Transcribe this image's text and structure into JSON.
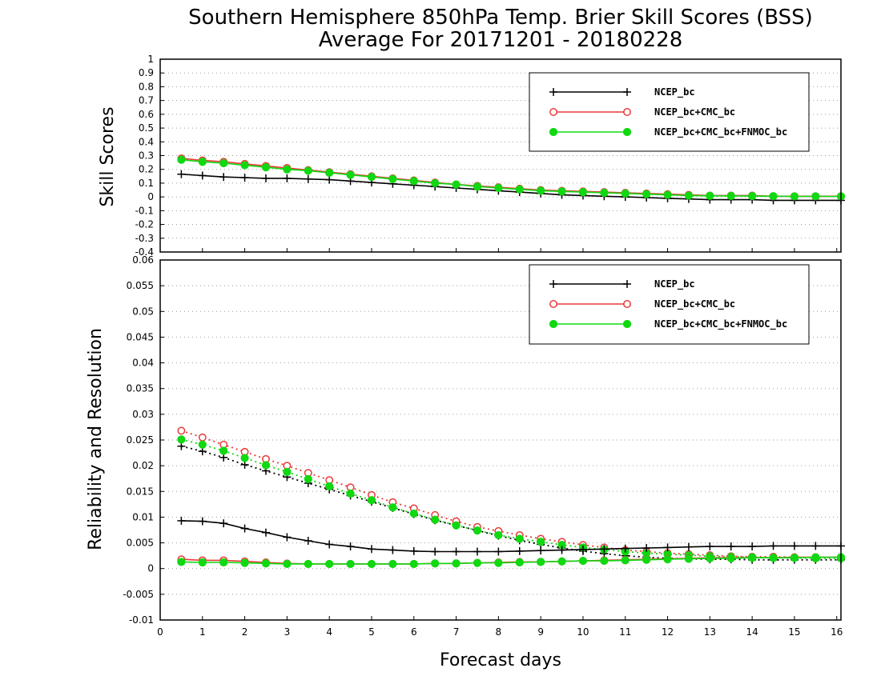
{
  "title": "Southern Hemisphere 850hPa Temp. Brier Skill Scores (BSS)",
  "subtitle": "Average For 20171201 - 20180228",
  "xlabel": "Forecast days",
  "colors": {
    "NCEP_bc": "#000000",
    "NCEP_bc+CMC_bc": "#e83a3a",
    "NCEP_bc+CMC_bc+FNMOC_bc": "#11d811"
  },
  "chart_data": [
    {
      "type": "line",
      "ylabel": "Skill Scores",
      "xlim": [
        0,
        16.1
      ],
      "ylim": [
        -0.4,
        1
      ],
      "xticks": [
        "0",
        "1",
        "2",
        "3",
        "4",
        "5",
        "6",
        "7",
        "8",
        "9",
        "10",
        "11",
        "12",
        "13",
        "14",
        "15",
        "16"
      ],
      "yticks": [
        "-0.4",
        "-0.3",
        "-0.2",
        "-0.1",
        "0",
        "0.1",
        "0.2",
        "0.3",
        "0.4",
        "0.5",
        "0.6",
        "0.7",
        "0.8",
        "0.9",
        "1"
      ],
      "grid": true,
      "legend": "top-right",
      "x": [
        0.5,
        1,
        1.5,
        2,
        2.5,
        3,
        3.5,
        4,
        4.5,
        5,
        5.5,
        6,
        6.5,
        7,
        7.5,
        8,
        8.5,
        9,
        9.5,
        10,
        10.5,
        11,
        11.5,
        12,
        12.5,
        13,
        13.5,
        14,
        14.5,
        15,
        15.5,
        16.1
      ],
      "series": [
        {
          "name": "NCEP_bc",
          "marker": "plus",
          "style": "solid",
          "values": [
            0.165,
            0.155,
            0.145,
            0.14,
            0.135,
            0.135,
            0.13,
            0.125,
            0.115,
            0.105,
            0.095,
            0.085,
            0.075,
            0.065,
            0.055,
            0.045,
            0.035,
            0.025,
            0.015,
            0.01,
            0.005,
            0,
            -0.005,
            -0.01,
            -0.015,
            -0.02,
            -0.02,
            -0.02,
            -0.025,
            -0.025,
            -0.025,
            -0.025
          ]
        },
        {
          "name": "NCEP_bc+CMC_bc",
          "marker": "circle-open",
          "style": "solid",
          "values": [
            0.28,
            0.265,
            0.255,
            0.24,
            0.225,
            0.21,
            0.195,
            0.18,
            0.165,
            0.15,
            0.135,
            0.12,
            0.105,
            0.09,
            0.08,
            0.07,
            0.06,
            0.05,
            0.045,
            0.04,
            0.035,
            0.03,
            0.025,
            0.02,
            0.015,
            0.01,
            0.01,
            0.01,
            0.005,
            0.005,
            0.005,
            0.005
          ]
        },
        {
          "name": "NCEP_bc+CMC_bc+FNMOC_bc",
          "marker": "circle-filled",
          "style": "solid",
          "values": [
            0.27,
            0.255,
            0.245,
            0.23,
            0.215,
            0.2,
            0.19,
            0.175,
            0.16,
            0.145,
            0.13,
            0.115,
            0.1,
            0.09,
            0.075,
            0.065,
            0.055,
            0.045,
            0.04,
            0.035,
            0.03,
            0.025,
            0.02,
            0.015,
            0.01,
            0.008,
            0.007,
            0.006,
            0.005,
            0.004,
            0.004,
            0.004
          ]
        }
      ]
    },
    {
      "type": "line",
      "ylabel": "Reliability and Resolution",
      "xlim": [
        0,
        16.1
      ],
      "ylim": [
        -0.01,
        0.06
      ],
      "xticks": [
        "0",
        "1",
        "2",
        "3",
        "4",
        "5",
        "6",
        "7",
        "8",
        "9",
        "10",
        "11",
        "12",
        "13",
        "14",
        "15",
        "16"
      ],
      "yticks": [
        "-0.01",
        "-0.005",
        "0",
        "0.005",
        "0.01",
        "0.015",
        "0.02",
        "0.025",
        "0.03",
        "0.035",
        "0.04",
        "0.045",
        "0.05",
        "0.055",
        "0.06"
      ],
      "grid": true,
      "legend": "top-right",
      "x": [
        0.5,
        1,
        1.5,
        2,
        2.5,
        3,
        3.5,
        4,
        4.5,
        5,
        5.5,
        6,
        6.5,
        7,
        7.5,
        8,
        8.5,
        9,
        9.5,
        10,
        10.5,
        11,
        11.5,
        12,
        12.5,
        13,
        13.5,
        14,
        14.5,
        15,
        15.5,
        16.1
      ],
      "series": [
        {
          "name": "NCEP_bc",
          "marker": "plus",
          "style": "dotted",
          "values": [
            0.0238,
            0.0228,
            0.0216,
            0.0202,
            0.019,
            0.0178,
            0.0166,
            0.0154,
            0.0142,
            0.013,
            0.0118,
            0.0106,
            0.0094,
            0.0084,
            0.0074,
            0.0064,
            0.0055,
            0.0047,
            0.004,
            0.0034,
            0.0029,
            0.0025,
            0.0022,
            0.002,
            0.0019,
            0.0018,
            0.0018,
            0.0017,
            0.0017,
            0.0017,
            0.0017,
            0.0017
          ]
        },
        {
          "name": "NCEP_bc+CMC_bc",
          "marker": "circle-open",
          "style": "dotted",
          "values": [
            0.0268,
            0.0255,
            0.0241,
            0.0227,
            0.0213,
            0.02,
            0.0186,
            0.0172,
            0.0158,
            0.0143,
            0.0129,
            0.0117,
            0.0104,
            0.0092,
            0.0081,
            0.0073,
            0.0065,
            0.0058,
            0.0052,
            0.0046,
            0.0041,
            0.0036,
            0.0033,
            0.003,
            0.0028,
            0.0026,
            0.0024,
            0.0023,
            0.0023,
            0.0022,
            0.0022,
            0.0022
          ]
        },
        {
          "name": "NCEP_bc+CMC_bc+FNMOC_bc",
          "marker": "circle-filled",
          "style": "dotted",
          "values": [
            0.0251,
            0.0241,
            0.0229,
            0.0215,
            0.0201,
            0.0188,
            0.0174,
            0.016,
            0.0146,
            0.0133,
            0.0119,
            0.0107,
            0.0095,
            0.0084,
            0.0074,
            0.0065,
            0.0058,
            0.0052,
            0.0046,
            0.0041,
            0.0037,
            0.0033,
            0.003,
            0.0028,
            0.0026,
            0.0024,
            0.0023,
            0.0022,
            0.0021,
            0.0021,
            0.002,
            0.002
          ]
        },
        {
          "name": "NCEP_bc",
          "marker": "plus",
          "style": "solid",
          "values": [
            0.0093,
            0.0092,
            0.0088,
            0.0078,
            0.007,
            0.0061,
            0.0054,
            0.0047,
            0.0043,
            0.0038,
            0.0036,
            0.0034,
            0.0033,
            0.0033,
            0.0033,
            0.0033,
            0.0034,
            0.0035,
            0.0036,
            0.0037,
            0.0038,
            0.0039,
            0.004,
            0.0041,
            0.0042,
            0.0043,
            0.0043,
            0.0043,
            0.0044,
            0.0044,
            0.0044,
            0.0044
          ]
        },
        {
          "name": "NCEP_bc+CMC_bc",
          "marker": "circle-open",
          "style": "solid",
          "values": [
            0.0018,
            0.0016,
            0.0016,
            0.0014,
            0.0012,
            0.001,
            0.0009,
            0.0009,
            0.0009,
            0.0009,
            0.0009,
            0.0009,
            0.001,
            0.001,
            0.0011,
            0.0012,
            0.0013,
            0.0013,
            0.0014,
            0.0015,
            0.0016,
            0.0017,
            0.0018,
            0.0019,
            0.002,
            0.0021,
            0.0021,
            0.0021,
            0.0021,
            0.0022,
            0.0022,
            0.0022
          ]
        },
        {
          "name": "NCEP_bc+CMC_bc+FNMOC_bc",
          "marker": "circle-filled",
          "style": "solid",
          "values": [
            0.0013,
            0.0012,
            0.0012,
            0.0011,
            0.001,
            0.0009,
            0.0009,
            0.0009,
            0.0009,
            0.0009,
            0.0009,
            0.0009,
            0.001,
            0.001,
            0.0011,
            0.0011,
            0.0012,
            0.0013,
            0.0014,
            0.0015,
            0.0015,
            0.0016,
            0.0017,
            0.0018,
            0.0019,
            0.002,
            0.002,
            0.0021,
            0.0021,
            0.0021,
            0.0022,
            0.0022
          ]
        }
      ]
    }
  ]
}
